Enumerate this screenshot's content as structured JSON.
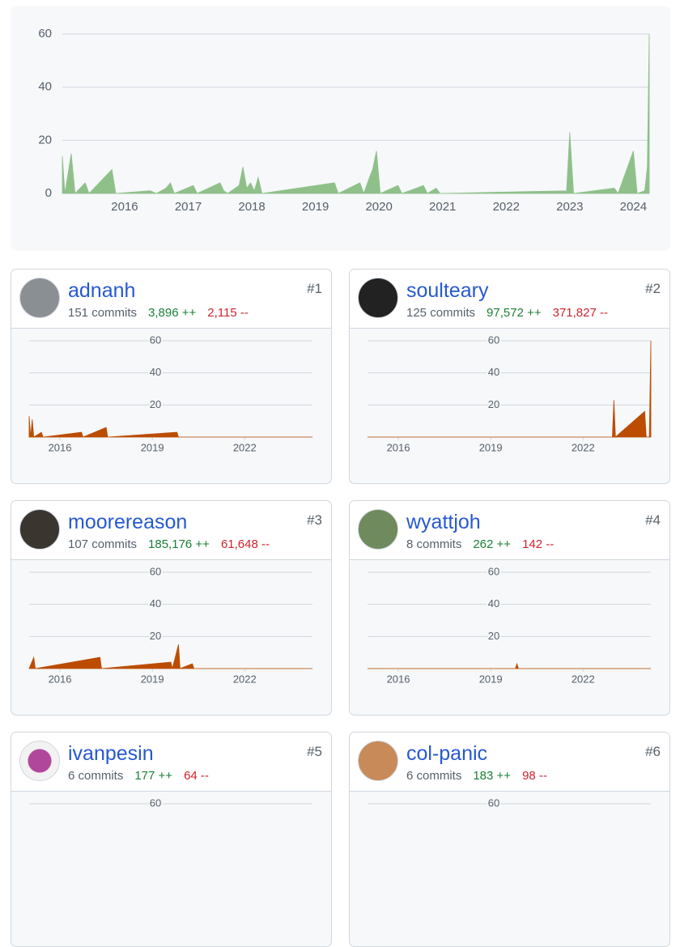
{
  "overview": {
    "chart_data": {
      "type": "area",
      "color": "#8fc08a",
      "x": [
        2015.02,
        2015.06,
        2015.1,
        2015.16,
        2015.22,
        2015.38,
        2015.44,
        2015.8,
        2015.86,
        2016.4,
        2016.5,
        2016.65,
        2016.72,
        2016.78,
        2017.08,
        2017.14,
        2017.5,
        2017.56,
        2017.62,
        2017.8,
        2017.86,
        2017.92,
        2017.98,
        2018.04,
        2018.1,
        2018.16,
        2019.3,
        2019.36,
        2019.7,
        2019.76,
        2019.85,
        2019.9,
        2019.96,
        2020.02,
        2020.3,
        2020.36,
        2020.7,
        2020.76,
        2020.9,
        2020.96,
        2022.95,
        2023.0,
        2023.06,
        2023.7,
        2023.76,
        2024.0,
        2024.06,
        2024.18,
        2024.22,
        2024.25
      ],
      "values": [
        14,
        0,
        6,
        15,
        0,
        4,
        0,
        9,
        0,
        1,
        0,
        2,
        4,
        0,
        3,
        0,
        4,
        1,
        0,
        3,
        10,
        2,
        4,
        1,
        6,
        0,
        4,
        0,
        4,
        0,
        6,
        9,
        16,
        0,
        3,
        0,
        3,
        0,
        2,
        0,
        1,
        23,
        0,
        2,
        0,
        16,
        0,
        1,
        10,
        60
      ],
      "xlim": [
        2015.02,
        2024.25
      ],
      "xticks": [
        2016,
        2017,
        2018,
        2019,
        2020,
        2021,
        2022,
        2023,
        2024
      ],
      "ylim": [
        0,
        60
      ],
      "yticks": [
        0,
        20,
        40,
        60
      ],
      "grid": true
    }
  },
  "contributors": [
    {
      "rank": "#1",
      "name": "adnanh",
      "commits": "151 commits",
      "additions": "3,896 ++",
      "deletions": "2,115 --",
      "chart_data": {
        "type": "area",
        "color": "#bc4c00",
        "x": [
          2015.0,
          2015.05,
          2015.1,
          2015.15,
          2015.4,
          2015.45,
          2016.7,
          2016.75,
          2017.5,
          2017.55,
          2019.8,
          2019.85,
          2024.2
        ],
        "values": [
          13,
          0,
          11,
          0,
          3,
          0,
          3,
          0,
          6,
          0,
          3,
          0,
          0
        ],
        "xlim": [
          2015.0,
          2024.2
        ],
        "xticks": [
          2016,
          2019,
          2022
        ],
        "ylim": [
          0,
          60
        ],
        "yticks": [
          20,
          40,
          60
        ]
      }
    },
    {
      "rank": "#2",
      "name": "soulteary",
      "commits": "125 commits",
      "additions": "97,572 ++",
      "deletions": "371,827 --",
      "chart_data": {
        "type": "area",
        "color": "#bc4c00",
        "x": [
          2015.0,
          2022.95,
          2023.0,
          2023.05,
          2024.0,
          2024.05,
          2024.15,
          2024.2
        ],
        "values": [
          0,
          0,
          23,
          0,
          16,
          0,
          0,
          60
        ],
        "xlim": [
          2015.0,
          2024.2
        ],
        "xticks": [
          2016,
          2019,
          2022
        ],
        "ylim": [
          0,
          60
        ],
        "yticks": [
          20,
          40,
          60
        ]
      }
    },
    {
      "rank": "#3",
      "name": "moorereason",
      "commits": "107 commits",
      "additions": "185,176 ++",
      "deletions": "61,648 --",
      "chart_data": {
        "type": "area",
        "color": "#bc4c00",
        "x": [
          2015.0,
          2015.15,
          2015.2,
          2017.3,
          2017.35,
          2019.6,
          2019.65,
          2019.85,
          2019.9,
          2020.3,
          2020.35,
          2024.2
        ],
        "values": [
          0,
          7,
          0,
          7,
          0,
          4,
          0,
          15,
          0,
          3,
          0,
          0
        ],
        "xlim": [
          2015.0,
          2024.2
        ],
        "xticks": [
          2016,
          2019,
          2022
        ],
        "ylim": [
          0,
          60
        ],
        "yticks": [
          20,
          40,
          60
        ]
      }
    },
    {
      "rank": "#4",
      "name": "wyattjoh",
      "commits": "8 commits",
      "additions": "262 ++",
      "deletions": "142 --",
      "chart_data": {
        "type": "area",
        "color": "#bc4c00",
        "x": [
          2015.0,
          2019.8,
          2019.85,
          2019.9,
          2024.2
        ],
        "values": [
          0,
          0,
          3,
          0,
          0
        ],
        "xlim": [
          2015.0,
          2024.2
        ],
        "xticks": [
          2016,
          2019,
          2022
        ],
        "ylim": [
          0,
          60
        ],
        "yticks": [
          20,
          40,
          60
        ]
      }
    },
    {
      "rank": "#5",
      "name": "ivanpesin",
      "commits": "6 commits",
      "additions": "177 ++",
      "deletions": "64 --",
      "chart_data": {
        "type": "area",
        "ylim": [
          0,
          60
        ],
        "yticks": [
          60
        ]
      }
    },
    {
      "rank": "#6",
      "name": "col-panic",
      "commits": "6 commits",
      "additions": "183 ++",
      "deletions": "98 --",
      "chart_data": {
        "type": "area",
        "ylim": [
          0,
          60
        ],
        "yticks": [
          60
        ]
      }
    }
  ]
}
